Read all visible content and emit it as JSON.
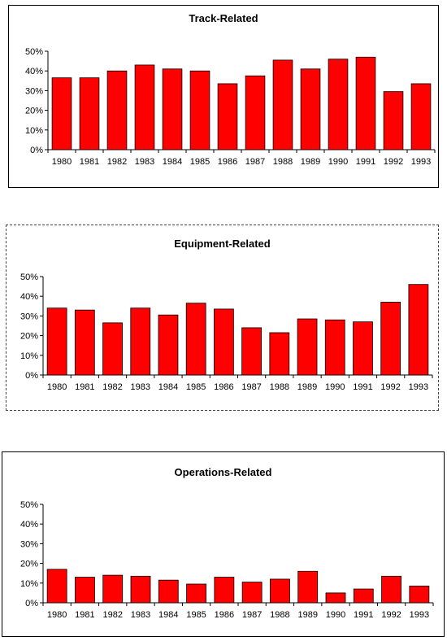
{
  "chart_data": [
    {
      "type": "bar",
      "title": "Track-Related",
      "categories": [
        "1980",
        "1981",
        "1982",
        "1983",
        "1984",
        "1985",
        "1986",
        "1987",
        "1988",
        "1989",
        "1990",
        "1991",
        "1992",
        "1993"
      ],
      "values": [
        36.5,
        36.5,
        40,
        43,
        41,
        40,
        33.5,
        37.5,
        45.5,
        41,
        46,
        47,
        29.5,
        33.5
      ],
      "ylim": [
        0,
        50
      ],
      "yticks": [
        "0%",
        "10%",
        "20%",
        "30%",
        "40%",
        "50%"
      ],
      "xlabel": "",
      "ylabel": "",
      "grid": false,
      "bar_color": "#ff0000"
    },
    {
      "type": "bar",
      "title": "Equipment-Related",
      "categories": [
        "1980",
        "1981",
        "1982",
        "1983",
        "1984",
        "1985",
        "1986",
        "1987",
        "1988",
        "1989",
        "1990",
        "1991",
        "1992",
        "1993"
      ],
      "values": [
        34,
        33,
        26.5,
        34,
        30.5,
        36.5,
        33.5,
        24,
        21.5,
        28.5,
        28,
        27,
        37,
        46
      ],
      "ylim": [
        0,
        50
      ],
      "yticks": [
        "0%",
        "10%",
        "20%",
        "30%",
        "40%",
        "50%"
      ],
      "xlabel": "",
      "ylabel": "",
      "grid": false,
      "bar_color": "#ff0000"
    },
    {
      "type": "bar",
      "title": "Operations-Related",
      "categories": [
        "1980",
        "1981",
        "1982",
        "1983",
        "1984",
        "1985",
        "1986",
        "1987",
        "1988",
        "1989",
        "1990",
        "1991",
        "1992",
        "1993"
      ],
      "values": [
        17,
        13,
        14,
        13.5,
        11.5,
        9.5,
        13,
        10.5,
        12,
        16,
        5,
        7,
        13.5,
        8.5
      ],
      "ylim": [
        0,
        50
      ],
      "yticks": [
        "0%",
        "10%",
        "20%",
        "30%",
        "40%",
        "50%"
      ],
      "xlabel": "",
      "ylabel": "",
      "grid": false,
      "bar_color": "#ff0000"
    }
  ]
}
